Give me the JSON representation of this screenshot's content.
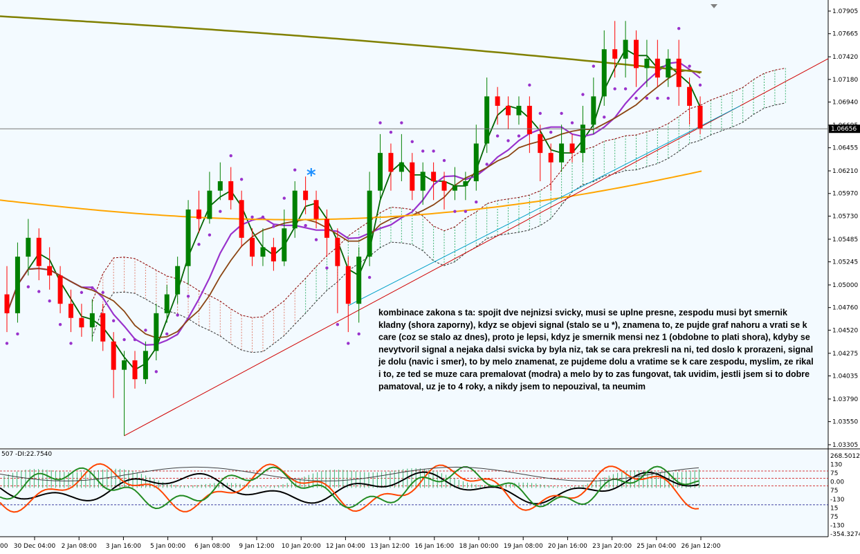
{
  "chart_data": [
    {
      "type": "candlestick",
      "title": "",
      "ylim": [
        1.033,
        1.08
      ],
      "price_ticks": [
        "1.07905",
        "1.07665",
        "1.07420",
        "1.07180",
        "1.06940",
        "1.06695",
        "1.06455",
        "1.06210",
        "1.05970",
        "1.05730",
        "1.05485",
        "1.05245",
        "1.05000",
        "1.04760",
        "1.04520",
        "1.04275",
        "1.04035",
        "1.03790",
        "1.03550",
        "1.03305"
      ],
      "current_price": "1.06656",
      "time_labels": [
        "30 Dec 04:00",
        "2 Jan 08:00",
        "3 Jan 16:00",
        "5 Jan 00:00",
        "6 Jan 08:00",
        "9 Jan 12:00",
        "10 Jan 20:00",
        "12 Jan 04:00",
        "13 Jan 12:00",
        "16 Jan 16:00",
        "18 Jan 00:00",
        "19 Jan 08:00",
        "20 Jan 16:00",
        "23 Jan 20:00",
        "25 Jan 04:00",
        "26 Jan 12:00"
      ],
      "signal_marker": "*",
      "annotation": "kombinace zakona s ta: spojit dve nejnizsi svicky, musi se uplne presne, zespodu musi byt smernik kladny (shora zaporny), kdyz se objevi signal (stalo se u *), znamena to, ze pujde graf nahoru a vrati se k care (coz se stalo az dnes), proto je lepsi, kdyz je smernik mensi nez 1 (obdobne to plati shora), kdyby se nevytvoril signal a nejaka dalsi svicka by byla niz, tak se cara prekresli na ni, ted doslo k prorazeni, signal je dolu (navic i smer), to by melo znamenat, ze pujdeme dolu a vratime se k care zespodu, myslim, ze rikal i to, ze ted se muze cara premalovat (modra) a melo  by to zas fungovat, tak uvidim, jestli jsem si to dobre pamatoval, uz je to 4 roky, a nikdy jsem to nepouzival, ta neumim",
      "colors": {
        "bull": "#008000",
        "bear": "#ff0000",
        "sar": "#9932cc",
        "ma_long": "#808000",
        "ma_orange": "#ffa500",
        "trend": "#d00000",
        "trend2": "#00a0c8"
      },
      "candles": [
        [
          1.049,
          1.047,
          1.052,
          1.045
        ],
        [
          1.047,
          1.053,
          1.0545,
          1.046
        ],
        [
          1.053,
          1.055,
          1.057,
          1.051
        ],
        [
          1.055,
          1.052,
          1.056,
          1.0505
        ],
        [
          1.052,
          1.051,
          1.054,
          1.0495
        ],
        [
          1.051,
          1.048,
          1.052,
          1.047
        ],
        [
          1.048,
          1.0465,
          1.0495,
          1.045
        ],
        [
          1.0465,
          1.0455,
          1.048,
          1.0445
        ],
        [
          1.0455,
          1.047,
          1.0485,
          1.044
        ],
        [
          1.047,
          1.044,
          1.048,
          1.043
        ],
        [
          1.044,
          1.041,
          1.045,
          1.038
        ],
        [
          1.041,
          1.042,
          1.043,
          1.034
        ],
        [
          1.042,
          1.04,
          1.043,
          1.039
        ],
        [
          1.04,
          1.043,
          1.044,
          1.0395
        ],
        [
          1.043,
          1.047,
          1.048,
          1.042
        ],
        [
          1.047,
          1.049,
          1.05,
          1.046
        ],
        [
          1.049,
          1.052,
          1.053,
          1.048
        ],
        [
          1.052,
          1.058,
          1.059,
          1.05
        ],
        [
          1.058,
          1.057,
          1.06,
          1.0555
        ],
        [
          1.057,
          1.06,
          1.062,
          1.0565
        ],
        [
          1.06,
          1.061,
          1.063,
          1.059
        ],
        [
          1.061,
          1.059,
          1.0625,
          1.058
        ],
        [
          1.059,
          1.055,
          1.06,
          1.054
        ],
        [
          1.055,
          1.053,
          1.056,
          1.052
        ],
        [
          1.053,
          1.054,
          1.056,
          1.052
        ],
        [
          1.054,
          1.0525,
          1.055,
          1.0515
        ],
        [
          1.0525,
          1.056,
          1.058,
          1.052
        ],
        [
          1.056,
          1.06,
          1.061,
          1.055
        ],
        [
          1.06,
          1.059,
          1.0615,
          1.0575
        ],
        [
          1.059,
          1.057,
          1.06,
          1.056
        ],
        [
          1.057,
          1.055,
          1.058,
          1.053
        ],
        [
          1.055,
          1.052,
          1.056,
          1.047
        ],
        [
          1.052,
          1.048,
          1.053,
          1.045
        ],
        [
          1.048,
          1.053,
          1.054,
          1.046
        ],
        [
          1.053,
          1.06,
          1.062,
          1.052
        ],
        [
          1.06,
          1.064,
          1.066,
          1.059
        ],
        [
          1.064,
          1.062,
          1.065,
          1.06
        ],
        [
          1.062,
          1.063,
          1.066,
          1.061
        ],
        [
          1.063,
          1.06,
          1.064,
          1.059
        ],
        [
          1.06,
          1.062,
          1.063,
          1.0585
        ],
        [
          1.062,
          1.061,
          1.063,
          1.059
        ],
        [
          1.061,
          1.06,
          1.062,
          1.058
        ],
        [
          1.06,
          1.0605,
          1.0625,
          1.059
        ],
        [
          1.0605,
          1.061,
          1.062,
          1.059
        ],
        [
          1.061,
          1.065,
          1.067,
          1.06
        ],
        [
          1.065,
          1.07,
          1.072,
          1.064
        ],
        [
          1.07,
          1.069,
          1.071,
          1.067
        ],
        [
          1.069,
          1.068,
          1.07,
          1.0665
        ],
        [
          1.068,
          1.069,
          1.07,
          1.067
        ],
        [
          1.069,
          1.066,
          1.07,
          1.064
        ],
        [
          1.066,
          1.064,
          1.067,
          1.061
        ],
        [
          1.064,
          1.063,
          1.065,
          1.06
        ],
        [
          1.063,
          1.065,
          1.067,
          1.062
        ],
        [
          1.065,
          1.064,
          1.066,
          1.063
        ],
        [
          1.064,
          1.067,
          1.069,
          1.063
        ],
        [
          1.067,
          1.07,
          1.072,
          1.066
        ],
        [
          1.07,
          1.075,
          1.077,
          1.069
        ],
        [
          1.075,
          1.074,
          1.078,
          1.072
        ],
        [
          1.074,
          1.076,
          1.078,
          1.072
        ],
        [
          1.076,
          1.073,
          1.077,
          1.071
        ],
        [
          1.073,
          1.074,
          1.076,
          1.071
        ],
        [
          1.074,
          1.072,
          1.076,
          1.071
        ],
        [
          1.072,
          1.074,
          1.075,
          1.071
        ],
        [
          1.074,
          1.071,
          1.076,
          1.069
        ],
        [
          1.071,
          1.069,
          1.072,
          1.067
        ],
        [
          1.069,
          1.0666,
          1.07,
          1.066
        ]
      ]
    },
    {
      "type": "line",
      "title": "",
      "header": "507 -DI:22.7540",
      "ylim": [
        -354.3274,
        268.5012
      ],
      "scale_labels": [
        "268.5012",
        "130",
        "75",
        "0.00",
        "75",
        "-130",
        "15",
        "75",
        "-130",
        "-354.3274"
      ]
    }
  ]
}
